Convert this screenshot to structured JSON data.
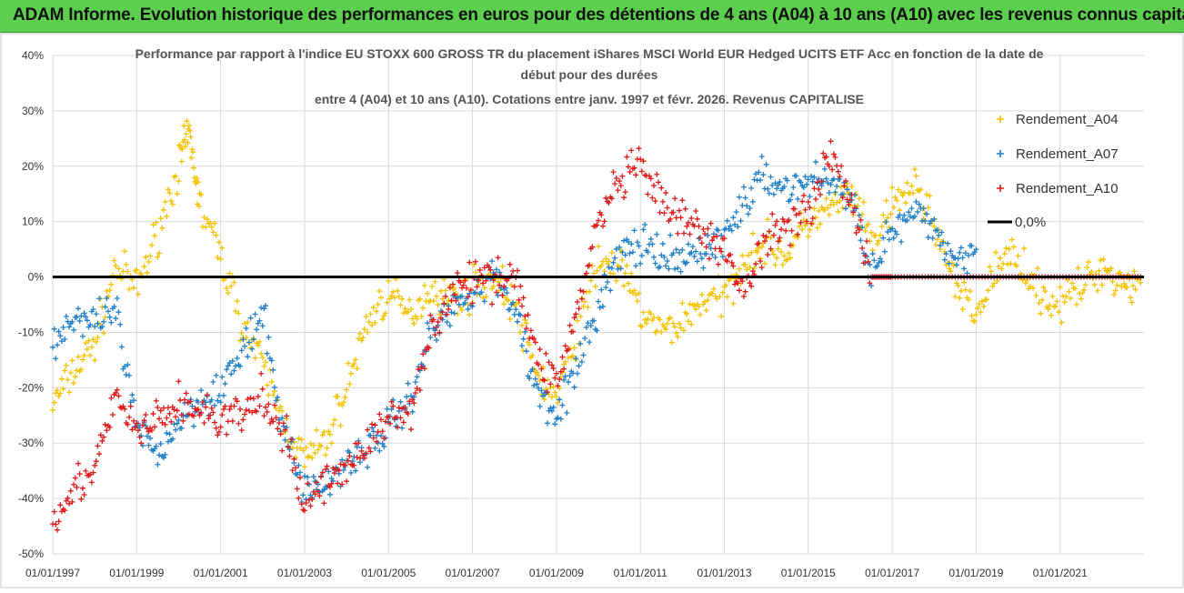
{
  "banner": {
    "title": "ADAM Informe. Evolution historique des performances en euros pour des détentions de 4 ans (A04) à 10 ans (A10) avec les revenus connus capitalisés"
  },
  "colors": {
    "A04": "#f2c200",
    "A07": "#1f7fc8",
    "A10": "#e01818",
    "zero": "#000000",
    "banner": "#5dcf4e"
  },
  "chart_data": {
    "type": "scatter",
    "title_lines": [
      "Performance par rapport à l'indice EU STOXX 600 GROSS TR  du placement iShares MSCI World EUR Hedged UCITS ETF Acc en fonction de la date de",
      "début pour des durées",
      "entre 4 (A04) et 10 ans (A10).  Cotations entre janv. 1997 et févr. 2026. Revenus CAPITALISE"
    ],
    "xlabel": "",
    "ylabel": "",
    "x_range": [
      "1997-01-01",
      "2022-12-31"
    ],
    "ylim": [
      -50,
      40
    ],
    "y_unit": "%",
    "y_ticks": [
      "40%",
      "30%",
      "20%",
      "10%",
      "0%",
      "-10%",
      "-20%",
      "-30%",
      "-40%",
      "-50%"
    ],
    "x_ticks": [
      "01/01/1997",
      "01/01/1999",
      "01/01/2001",
      "01/01/2003",
      "01/01/2005",
      "01/01/2007",
      "01/01/2009",
      "01/01/2011",
      "01/01/2013",
      "01/01/2015",
      "01/01/2017",
      "01/01/2019",
      "01/01/2021"
    ],
    "grid": true,
    "legend_position": "right",
    "legend": [
      "Rendement_A04",
      "Rendement_A07",
      "Rendement_A10",
      "0,0%"
    ],
    "series": [
      {
        "name": "Rendement_A04",
        "x": [
          "1997-01",
          "1997-07",
          "1998-01",
          "1998-07",
          "1999-01",
          "1999-07",
          "2000-01",
          "2000-04",
          "2000-07",
          "2001-01",
          "2001-07",
          "2002-01",
          "2002-07",
          "2003-01",
          "2003-07",
          "2004-01",
          "2004-07",
          "2005-01",
          "2005-07",
          "2006-01",
          "2006-07",
          "2007-01",
          "2007-07",
          "2008-01",
          "2008-07",
          "2009-01",
          "2009-07",
          "2010-01",
          "2010-07",
          "2011-01",
          "2011-07",
          "2012-01",
          "2012-07",
          "2013-01",
          "2013-07",
          "2014-01",
          "2014-07",
          "2015-01",
          "2015-07",
          "2016-01",
          "2016-07",
          "2017-01",
          "2017-07",
          "2018-01",
          "2018-07",
          "2019-01",
          "2019-07",
          "2020-01",
          "2020-07",
          "2021-01",
          "2021-07",
          "2022-01",
          "2022-07",
          "2022-12"
        ],
        "values": [
          -23,
          -17,
          -12,
          2,
          -2,
          8,
          20,
          26,
          13,
          4,
          -8,
          -16,
          -26,
          -33,
          -30,
          -20,
          -8,
          -3,
          -7,
          -2,
          -4,
          -2,
          0,
          -5,
          -17,
          -22,
          -10,
          3,
          2,
          -6,
          -10,
          -8,
          -4,
          -4,
          4,
          6,
          4,
          10,
          12,
          15,
          6,
          12,
          17,
          10,
          -2,
          -7,
          2,
          4,
          -3,
          -5,
          -2,
          2,
          -1,
          -1
        ]
      },
      {
        "name": "Rendement_A07",
        "x": [
          "1997-01",
          "1997-07",
          "1998-01",
          "1998-07",
          "1999-01",
          "1999-07",
          "2000-01",
          "2000-07",
          "2001-01",
          "2001-07",
          "2002-01",
          "2002-07",
          "2003-01",
          "2003-07",
          "2004-01",
          "2004-07",
          "2005-01",
          "2005-07",
          "2006-01",
          "2006-07",
          "2007-01",
          "2007-07",
          "2008-01",
          "2008-07",
          "2009-01",
          "2009-07",
          "2010-01",
          "2010-07",
          "2011-01",
          "2011-07",
          "2012-01",
          "2012-07",
          "2013-01",
          "2013-07",
          "2014-01",
          "2014-07",
          "2015-01",
          "2015-07",
          "2016-01",
          "2016-07",
          "2017-01",
          "2017-07",
          "2018-01",
          "2018-07",
          "2019-01"
        ],
        "values": [
          -12,
          -7,
          -9,
          -6,
          -28,
          -32,
          -26,
          -22,
          -20,
          -14,
          -7,
          -28,
          -38,
          -38,
          -33,
          -31,
          -27,
          -22,
          -10,
          -6,
          -2,
          0,
          -5,
          -20,
          -24,
          -17,
          -5,
          4,
          6,
          3,
          3,
          5,
          7,
          14,
          18,
          16,
          17,
          18,
          14,
          2,
          8,
          11,
          9,
          3,
          5
        ]
      },
      {
        "name": "Rendement_A10",
        "x": [
          "1997-01",
          "1997-07",
          "1998-01",
          "1998-07",
          "1999-01",
          "1999-07",
          "2000-01",
          "2000-07",
          "2001-01",
          "2001-07",
          "2002-01",
          "2002-07",
          "2003-01",
          "2003-07",
          "2004-01",
          "2004-07",
          "2005-01",
          "2005-07",
          "2006-01",
          "2006-07",
          "2007-01",
          "2007-07",
          "2008-01",
          "2008-07",
          "2009-01",
          "2009-07",
          "2010-01",
          "2010-07",
          "2011-01",
          "2011-07",
          "2012-01",
          "2012-07",
          "2013-01",
          "2013-07",
          "2014-01",
          "2014-07",
          "2015-01",
          "2015-07",
          "2016-01",
          "2016-07",
          "2017-01",
          "2018-01",
          "2019-01",
          "2020-01",
          "2021-01",
          "2022-01",
          "2022-12"
        ],
        "values": [
          -43,
          -38,
          -35,
          -22,
          -28,
          -26,
          -23,
          -24,
          -26,
          -25,
          -22,
          -28,
          -41,
          -37,
          -34,
          -30,
          -26,
          -24,
          -10,
          -3,
          -1,
          0,
          1,
          -14,
          -19,
          -6,
          10,
          17,
          20,
          13,
          10,
          8,
          4,
          -2,
          7,
          10,
          12,
          22,
          15,
          0,
          0,
          0,
          0,
          0,
          0,
          0,
          0
        ]
      }
    ],
    "reference_line": {
      "name": "0,0%",
      "value": 0
    }
  }
}
